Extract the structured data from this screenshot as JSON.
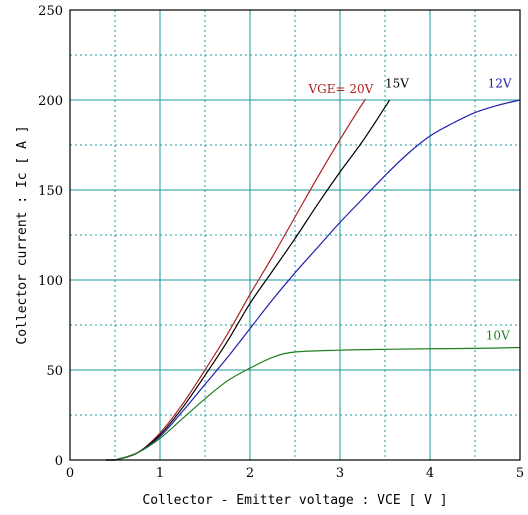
{
  "chart_data": {
    "type": "line",
    "title": "",
    "xlabel": "Collector - Emitter voltage  :  VCE  [ V ]",
    "ylabel": "Collector current  :  Ic  [ A ]",
    "xlim": [
      0,
      5
    ],
    "ylim": [
      0,
      250
    ],
    "x_ticks": [
      0,
      1,
      2,
      3,
      4,
      5
    ],
    "y_ticks": [
      0,
      50,
      100,
      150,
      200,
      250
    ],
    "grid": true,
    "series": [
      {
        "name": "VGE= 20V",
        "color": "#b02020",
        "x": [
          0.5,
          0.75,
          1.0,
          1.25,
          1.5,
          1.75,
          2.0,
          2.25,
          2.5,
          2.75,
          3.0,
          3.25,
          3.28
        ],
        "y": [
          0,
          4,
          15,
          31,
          50,
          70,
          92,
          113,
          135,
          157,
          178,
          198,
          200
        ]
      },
      {
        "name": "15V",
        "color": "#000000",
        "x": [
          0.5,
          0.75,
          1.0,
          1.25,
          1.5,
          1.75,
          2.0,
          2.25,
          2.5,
          2.75,
          3.0,
          3.25,
          3.5,
          3.55
        ],
        "y": [
          0,
          4,
          14,
          29,
          47,
          66,
          87,
          105,
          123,
          142,
          160,
          177,
          196,
          200
        ]
      },
      {
        "name": "12V",
        "color": "#2020b0",
        "x": [
          0.5,
          0.75,
          1.0,
          1.25,
          1.5,
          1.75,
          2.0,
          2.25,
          2.5,
          2.75,
          3.0,
          3.25,
          3.5,
          3.75,
          4.0,
          4.25,
          4.5,
          4.75,
          5.0
        ],
        "y": [
          0,
          4,
          13,
          27,
          42,
          57,
          73,
          89,
          104,
          118,
          132,
          145,
          158,
          170,
          180,
          187,
          193,
          197,
          200
        ]
      },
      {
        "name": "10V",
        "color": "#208020",
        "x": [
          0.5,
          0.75,
          1.0,
          1.25,
          1.5,
          1.75,
          2.0,
          2.25,
          2.5,
          3.0,
          3.5,
          4.0,
          4.5,
          5.0
        ],
        "y": [
          0,
          4,
          12,
          23,
          34,
          44,
          51,
          57,
          60,
          61,
          61.5,
          61.8,
          62,
          62.5
        ]
      }
    ],
    "annotations": [
      {
        "text": "VGE= 20V",
        "series": 0,
        "x": 2.65,
        "y": 204,
        "anchor": "start"
      },
      {
        "text": "15V",
        "series": 1,
        "x": 3.5,
        "y": 207,
        "anchor": "start"
      },
      {
        "text": "12V",
        "series": 2,
        "x": 4.64,
        "y": 207,
        "anchor": "start"
      },
      {
        "text": "10V",
        "series": 3,
        "x": 4.62,
        "y": 67,
        "anchor": "start"
      }
    ]
  }
}
